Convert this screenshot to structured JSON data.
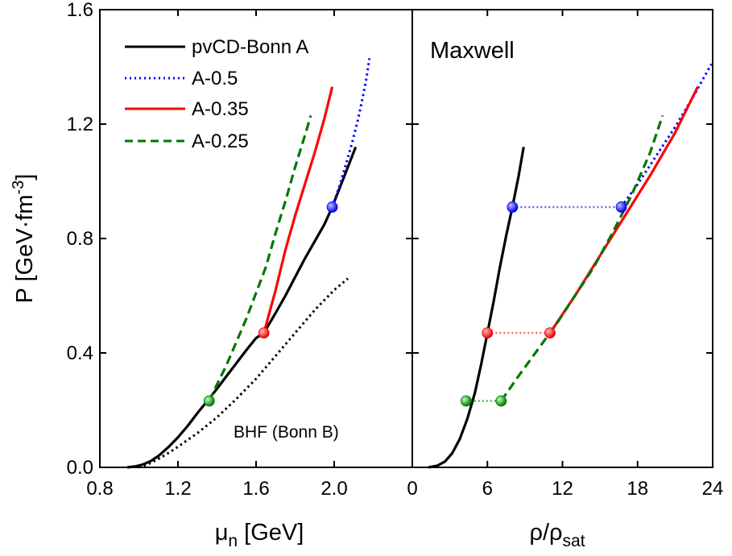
{
  "chart_data": [
    {
      "type": "line",
      "panel": "left",
      "xlabel": "μ",
      "xlabel_sub": "n",
      "xlabel_unit": " [GeV]",
      "ylabel": "P [GeV·fm",
      "ylabel_sup": "-3",
      "ylabel_end": "]",
      "xlim": [
        0.8,
        2.4
      ],
      "ylim": [
        0.0,
        1.6
      ],
      "xticks": [
        "0.8",
        "1.2",
        "1.6",
        "2.0"
      ],
      "xtick_values": [
        0.8,
        1.2,
        1.6,
        2.0
      ],
      "yticks": [
        "0.0",
        "0.4",
        "0.8",
        "1.2",
        "1.6"
      ],
      "ytick_values": [
        0.0,
        0.4,
        0.8,
        1.2,
        1.6
      ],
      "annotation": "BHF (Bonn B)",
      "legend_position": "top-left",
      "series": [
        {
          "name": "pvCD-Bonn A",
          "color": "#000000",
          "style": "solid",
          "x": [
            0.94,
            0.98,
            1.02,
            1.06,
            1.1,
            1.15,
            1.2,
            1.25,
            1.3,
            1.35,
            1.4,
            1.45,
            1.5,
            1.55,
            1.6,
            1.64,
            1.7,
            1.75,
            1.8,
            1.85,
            1.9,
            1.95,
            1.99,
            2.03,
            2.07,
            2.11
          ],
          "y": [
            0.0,
            0.003,
            0.01,
            0.022,
            0.04,
            0.07,
            0.105,
            0.145,
            0.19,
            0.232,
            0.275,
            0.32,
            0.365,
            0.41,
            0.452,
            0.47,
            0.54,
            0.6,
            0.665,
            0.73,
            0.79,
            0.85,
            0.91,
            0.98,
            1.05,
            1.12
          ]
        },
        {
          "name": "",
          "color": "#000000",
          "style": "dotted",
          "x": [
            1.0,
            1.05,
            1.1,
            1.15,
            1.2,
            1.3,
            1.4,
            1.5,
            1.6,
            1.7,
            1.8,
            1.9,
            2.0,
            2.07
          ],
          "y": [
            0.0,
            0.012,
            0.03,
            0.05,
            0.072,
            0.12,
            0.175,
            0.24,
            0.31,
            0.39,
            0.47,
            0.55,
            0.62,
            0.66
          ]
        },
        {
          "name": "A-0.5",
          "color": "#0000ff",
          "style": "dotted",
          "x": [
            1.99,
            2.03,
            2.06,
            2.09,
            2.12,
            2.145,
            2.165,
            2.18
          ],
          "y": [
            0.91,
            0.99,
            1.06,
            1.13,
            1.21,
            1.29,
            1.36,
            1.43
          ]
        },
        {
          "name": "A-0.35",
          "color": "#ff0000",
          "style": "solid",
          "x": [
            1.64,
            1.7,
            1.75,
            1.8,
            1.85,
            1.9,
            1.95,
            1.99
          ],
          "y": [
            0.47,
            0.62,
            0.76,
            0.88,
            0.99,
            1.1,
            1.22,
            1.33
          ]
        },
        {
          "name": "A-0.25",
          "color": "#007700",
          "style": "dashed",
          "x": [
            1.36,
            1.4,
            1.45,
            1.5,
            1.55,
            1.6,
            1.65,
            1.7,
            1.75,
            1.8,
            1.85,
            1.88
          ],
          "y": [
            0.232,
            0.29,
            0.36,
            0.44,
            0.52,
            0.61,
            0.7,
            0.82,
            0.93,
            1.05,
            1.16,
            1.23
          ]
        }
      ],
      "markers": [
        {
          "x": 1.36,
          "y": 0.232,
          "color": "#008000"
        },
        {
          "x": 1.64,
          "y": 0.47,
          "color": "#ff0000"
        },
        {
          "x": 1.99,
          "y": 0.91,
          "color": "#0000ff"
        }
      ]
    },
    {
      "type": "line",
      "panel": "right",
      "title": "Maxwell",
      "xlabel": "ρ/ρ",
      "xlabel_sub": "sat",
      "xlim": [
        0,
        24
      ],
      "ylim": [
        0.0,
        1.6
      ],
      "xticks": [
        "0",
        "6",
        "12",
        "18",
        "24"
      ],
      "xtick_values": [
        0,
        6,
        12,
        18,
        24
      ],
      "ytick_values": [
        0.0,
        0.4,
        0.8,
        1.2,
        1.6
      ],
      "series": [
        {
          "name": "pvCD-Bonn A",
          "color": "#000000",
          "style": "solid",
          "x": [
            1.3,
            2.0,
            2.6,
            3.2,
            3.8,
            4.4,
            5.0,
            5.5,
            6.0,
            6.5,
            7.0,
            7.5,
            8.0,
            8.5,
            8.9
          ],
          "y": [
            0.0,
            0.006,
            0.02,
            0.05,
            0.1,
            0.17,
            0.26,
            0.36,
            0.47,
            0.58,
            0.7,
            0.81,
            0.91,
            1.02,
            1.12
          ]
        },
        {
          "name": "A-0.5",
          "color": "#0000ff",
          "style": "dotted",
          "x": [
            16.7,
            18.0,
            19.5,
            21.0,
            22.5,
            23.9
          ],
          "y": [
            0.91,
            0.99,
            1.09,
            1.19,
            1.3,
            1.41
          ]
        },
        {
          "name": "A-0.35",
          "color": "#ff0000",
          "style": "solid",
          "x": [
            11.0,
            13.0,
            15.0,
            17.0,
            19.0,
            21.0,
            22.8
          ],
          "y": [
            0.47,
            0.6,
            0.74,
            0.88,
            1.02,
            1.17,
            1.33
          ]
        },
        {
          "name": "A-0.25",
          "color": "#007700",
          "style": "dashed",
          "x": [
            7.1,
            8.5,
            10.0,
            11.5,
            13.0,
            14.5,
            16.0,
            17.5,
            19.0,
            20.0
          ],
          "y": [
            0.232,
            0.32,
            0.41,
            0.5,
            0.6,
            0.7,
            0.82,
            0.95,
            1.1,
            1.23
          ]
        }
      ],
      "maxwell_lines": [
        {
          "x1": 4.3,
          "x2": 7.1,
          "y": 0.232,
          "color": "#55bb55"
        },
        {
          "x1": 6.0,
          "x2": 11.0,
          "y": 0.47,
          "color": "#ff6666"
        },
        {
          "x1": 8.0,
          "x2": 16.7,
          "y": 0.91,
          "color": "#6666ff"
        }
      ],
      "markers": [
        {
          "x": 4.3,
          "y": 0.232,
          "color": "#008000"
        },
        {
          "x": 7.1,
          "y": 0.232,
          "color": "#008000"
        },
        {
          "x": 6.0,
          "y": 0.47,
          "color": "#ff0000"
        },
        {
          "x": 11.0,
          "y": 0.47,
          "color": "#ff0000"
        },
        {
          "x": 8.0,
          "y": 0.91,
          "color": "#0000ff"
        },
        {
          "x": 16.7,
          "y": 0.91,
          "color": "#0000ff"
        }
      ]
    }
  ]
}
